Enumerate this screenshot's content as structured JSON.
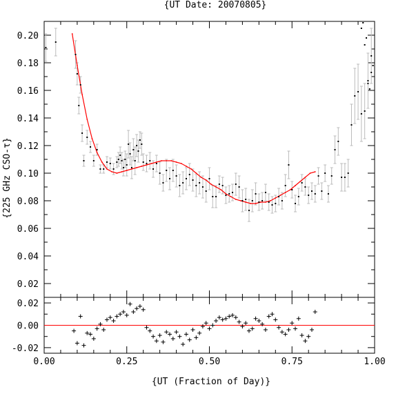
{
  "chart_data": [
    {
      "type": "scatter",
      "title": "{UT Date: 20070805}",
      "xlabel": "{UT (Fraction of Day)}",
      "ylabel": "{225 GHz CSO-τ}",
      "xlim": [
        0.0,
        1.0
      ],
      "ylim": [
        0.01,
        0.21
      ],
      "x_ticks": [
        "0.00",
        "0.25",
        "0.50",
        "0.75",
        "1.00"
      ],
      "y_ticks": [
        "0.02",
        "0.04",
        "0.06",
        "0.08",
        "0.10",
        "0.12",
        "0.14",
        "0.16",
        "0.18",
        "0.20"
      ],
      "series": [
        {
          "kind": "points_with_errorbars",
          "color": "#000000",
          "errorbar_color": "#bbbbbb",
          "x": [
            0.005,
            0.035,
            0.095,
            0.1,
            0.105,
            0.11,
            0.115,
            0.12,
            0.13,
            0.14,
            0.15,
            0.16,
            0.17,
            0.18,
            0.19,
            0.2,
            0.21,
            0.22,
            0.225,
            0.23,
            0.235,
            0.24,
            0.245,
            0.25,
            0.255,
            0.26,
            0.265,
            0.27,
            0.275,
            0.28,
            0.285,
            0.29,
            0.295,
            0.3,
            0.31,
            0.32,
            0.33,
            0.34,
            0.35,
            0.36,
            0.37,
            0.38,
            0.39,
            0.4,
            0.41,
            0.42,
            0.43,
            0.44,
            0.45,
            0.46,
            0.47,
            0.48,
            0.49,
            0.5,
            0.51,
            0.52,
            0.53,
            0.54,
            0.55,
            0.56,
            0.57,
            0.58,
            0.59,
            0.6,
            0.61,
            0.62,
            0.63,
            0.64,
            0.65,
            0.66,
            0.67,
            0.68,
            0.69,
            0.7,
            0.71,
            0.72,
            0.73,
            0.74,
            0.75,
            0.76,
            0.77,
            0.78,
            0.79,
            0.8,
            0.81,
            0.82,
            0.83,
            0.84,
            0.85,
            0.86,
            0.87,
            0.88,
            0.89,
            0.9,
            0.91,
            0.92,
            0.93,
            0.94,
            0.95,
            0.96,
            0.97,
            0.98,
            0.99
          ],
          "y": [
            0.191,
            0.195,
            0.186,
            0.172,
            0.149,
            0.164,
            0.129,
            0.109,
            0.126,
            0.119,
            0.109,
            0.117,
            0.103,
            0.103,
            0.108,
            0.107,
            0.103,
            0.108,
            0.11,
            0.113,
            0.109,
            0.104,
            0.11,
            0.106,
            0.121,
            0.114,
            0.104,
            0.117,
            0.109,
            0.12,
            0.116,
            0.124,
            0.121,
            0.108,
            0.107,
            0.109,
            0.103,
            0.107,
            0.1,
            0.093,
            0.102,
            0.096,
            0.102,
            0.098,
            0.091,
            0.093,
            0.096,
            0.099,
            0.095,
            0.091,
            0.093,
            0.09,
            0.087,
            0.096,
            0.083,
            0.083,
            0.092,
            0.091,
            0.084,
            0.085,
            0.086,
            0.092,
            0.09,
            0.08,
            0.081,
            0.073,
            0.08,
            0.085,
            0.079,
            0.08,
            0.086,
            0.079,
            0.077,
            0.078,
            0.083,
            0.08,
            0.091,
            0.106,
            0.088,
            0.078,
            0.083,
            0.093,
            0.09,
            0.084,
            0.087,
            0.085,
            0.098,
            0.087,
            0.1,
            0.085,
            0.098,
            0.117,
            0.123,
            0.097,
            0.097,
            0.1,
            0.135,
            0.156,
            0.159,
            0.143,
            0.145,
            0.167,
            0.185
          ],
          "err": [
            0.01,
            0.01,
            0.01,
            0.008,
            0.006,
            0.006,
            0.006,
            0.004,
            0.005,
            0.004,
            0.004,
            0.004,
            0.003,
            0.003,
            0.004,
            0.004,
            0.004,
            0.004,
            0.005,
            0.006,
            0.006,
            0.006,
            0.006,
            0.008,
            0.01,
            0.008,
            0.008,
            0.008,
            0.01,
            0.008,
            0.008,
            0.006,
            0.008,
            0.006,
            0.006,
            0.006,
            0.006,
            0.006,
            0.008,
            0.006,
            0.008,
            0.008,
            0.008,
            0.008,
            0.008,
            0.008,
            0.008,
            0.008,
            0.008,
            0.008,
            0.008,
            0.008,
            0.008,
            0.008,
            0.008,
            0.008,
            0.006,
            0.006,
            0.006,
            0.006,
            0.006,
            0.008,
            0.008,
            0.008,
            0.008,
            0.008,
            0.008,
            0.008,
            0.006,
            0.006,
            0.006,
            0.006,
            0.006,
            0.006,
            0.006,
            0.006,
            0.008,
            0.01,
            0.006,
            0.006,
            0.006,
            0.006,
            0.006,
            0.006,
            0.006,
            0.006,
            0.006,
            0.006,
            0.006,
            0.006,
            0.006,
            0.01,
            0.01,
            0.01,
            0.01,
            0.01,
            0.015,
            0.02,
            0.02,
            0.02,
            0.02,
            0.02,
            0.02
          ]
        },
        {
          "kind": "extra_points",
          "color": "#000000",
          "x": [
            0.96,
            0.965,
            0.97,
            0.975,
            0.98,
            0.985,
            0.99,
            0.995
          ],
          "y": [
            0.205,
            0.209,
            0.193,
            0.198,
            0.165,
            0.161,
            0.173,
            0.178
          ]
        },
        {
          "kind": "fit_curve",
          "color": "#ff0000",
          "x": [
            0.085,
            0.1,
            0.115,
            0.13,
            0.145,
            0.16,
            0.175,
            0.19,
            0.205,
            0.22,
            0.235,
            0.25,
            0.265,
            0.28,
            0.295,
            0.31,
            0.325,
            0.34,
            0.355,
            0.37,
            0.385,
            0.4,
            0.415,
            0.43,
            0.445,
            0.46,
            0.475,
            0.49,
            0.505,
            0.52,
            0.535,
            0.55,
            0.565,
            0.58,
            0.595,
            0.61,
            0.625,
            0.64,
            0.655,
            0.67,
            0.685,
            0.7,
            0.715,
            0.73,
            0.745,
            0.76,
            0.775,
            0.79,
            0.805,
            0.82
          ],
          "y": [
            0.201,
            0.178,
            0.157,
            0.139,
            0.125,
            0.115,
            0.108,
            0.103,
            0.101,
            0.1,
            0.101,
            0.102,
            0.103,
            0.104,
            0.105,
            0.106,
            0.107,
            0.108,
            0.109,
            0.109,
            0.109,
            0.108,
            0.107,
            0.105,
            0.103,
            0.1,
            0.097,
            0.095,
            0.092,
            0.09,
            0.088,
            0.085,
            0.083,
            0.081,
            0.08,
            0.079,
            0.078,
            0.078,
            0.079,
            0.079,
            0.08,
            0.082,
            0.084,
            0.086,
            0.088,
            0.091,
            0.094,
            0.097,
            0.1,
            0.101
          ]
        }
      ]
    },
    {
      "type": "scatter",
      "xlim": [
        0.0,
        1.0
      ],
      "ylim": [
        -0.025,
        0.025
      ],
      "y_ticks": [
        "0.02",
        "0.00",
        "-0.02"
      ],
      "series": [
        {
          "kind": "residuals",
          "color": "#000000",
          "x": [
            0.09,
            0.1,
            0.11,
            0.12,
            0.13,
            0.14,
            0.15,
            0.16,
            0.17,
            0.18,
            0.19,
            0.2,
            0.21,
            0.22,
            0.23,
            0.24,
            0.25,
            0.26,
            0.27,
            0.28,
            0.29,
            0.3,
            0.31,
            0.32,
            0.33,
            0.34,
            0.35,
            0.36,
            0.37,
            0.38,
            0.39,
            0.4,
            0.41,
            0.42,
            0.43,
            0.44,
            0.45,
            0.46,
            0.47,
            0.48,
            0.49,
            0.5,
            0.51,
            0.52,
            0.53,
            0.54,
            0.55,
            0.56,
            0.57,
            0.58,
            0.59,
            0.6,
            0.61,
            0.62,
            0.63,
            0.64,
            0.65,
            0.66,
            0.67,
            0.68,
            0.69,
            0.7,
            0.71,
            0.72,
            0.73,
            0.74,
            0.75,
            0.76,
            0.77,
            0.78,
            0.79,
            0.8,
            0.81,
            0.82
          ],
          "y": [
            -0.005,
            -0.016,
            0.008,
            -0.018,
            -0.007,
            -0.008,
            -0.012,
            -0.003,
            0.001,
            -0.004,
            0.005,
            0.007,
            0.004,
            0.008,
            0.01,
            0.012,
            0.009,
            0.019,
            0.012,
            0.015,
            0.017,
            0.014,
            -0.002,
            -0.005,
            -0.01,
            -0.014,
            -0.009,
            -0.015,
            -0.006,
            -0.008,
            -0.012,
            -0.006,
            -0.01,
            -0.017,
            -0.008,
            -0.013,
            -0.004,
            -0.011,
            -0.007,
            -0.001,
            0.002,
            -0.003,
            0.0,
            0.004,
            0.007,
            0.005,
            0.006,
            0.008,
            0.009,
            0.007,
            0.003,
            -0.001,
            0.002,
            -0.005,
            -0.003,
            0.006,
            0.004,
            0.001,
            -0.004,
            0.008,
            0.01,
            0.005,
            -0.002,
            -0.006,
            -0.008,
            -0.004,
            0.002,
            -0.003,
            0.006,
            -0.009,
            -0.014,
            -0.01,
            -0.004,
            0.012
          ]
        },
        {
          "kind": "zero_line",
          "color": "#ff0000",
          "y": 0.0
        }
      ]
    }
  ]
}
